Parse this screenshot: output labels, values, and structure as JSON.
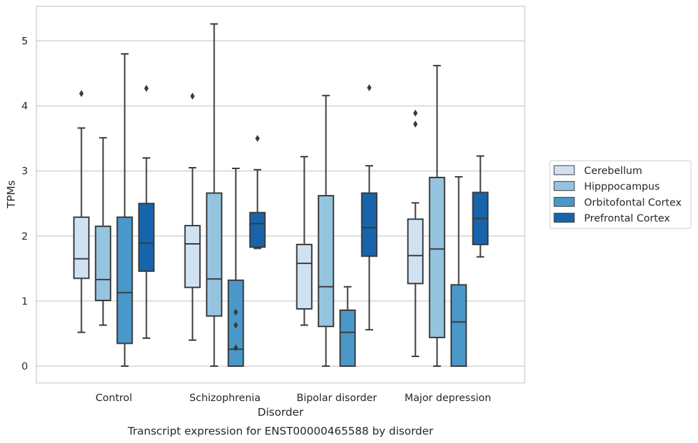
{
  "chart_data": {
    "type": "box",
    "title": "",
    "caption": "Transcript expression for ENST00000465588 by disorder",
    "xlabel": "Disorder",
    "ylabel": "TPMs",
    "ylim": [
      -0.25,
      5.5
    ],
    "yticks": [
      0,
      1,
      2,
      3,
      4,
      5
    ],
    "grid": "horizontal",
    "legend_position": "right",
    "categories": [
      "Control",
      "Schizophrenia",
      "Bipolar disorder",
      "Major depression"
    ],
    "series": [
      {
        "name": "Cerebellum",
        "color": "#d0e1f2",
        "boxes": [
          {
            "whisker_low": 0.52,
            "q1": 1.35,
            "median": 1.65,
            "q3": 2.29,
            "whisker_high": 3.66,
            "outliers": [
              4.19
            ]
          },
          {
            "whisker_low": 0.4,
            "q1": 1.21,
            "median": 1.88,
            "q3": 2.16,
            "whisker_high": 3.05,
            "outliers": [
              4.15
            ]
          },
          {
            "whisker_low": 0.63,
            "q1": 0.88,
            "median": 1.58,
            "q3": 1.87,
            "whisker_high": 3.22,
            "outliers": []
          },
          {
            "whisker_low": 0.15,
            "q1": 1.27,
            "median": 1.7,
            "q3": 2.26,
            "whisker_high": 2.51,
            "outliers": [
              3.72,
              3.89
            ]
          }
        ]
      },
      {
        "name": "Hipppocampus",
        "color": "#94c4df",
        "boxes": [
          {
            "whisker_low": 0.63,
            "q1": 1.01,
            "median": 1.33,
            "q3": 2.15,
            "whisker_high": 3.51,
            "outliers": []
          },
          {
            "whisker_low": 0.0,
            "q1": 0.77,
            "median": 1.34,
            "q3": 2.66,
            "whisker_high": 5.26,
            "outliers": []
          },
          {
            "whisker_low": 0.0,
            "q1": 0.61,
            "median": 1.22,
            "q3": 2.62,
            "whisker_high": 4.16,
            "outliers": []
          },
          {
            "whisker_low": 0.0,
            "q1": 0.44,
            "median": 1.8,
            "q3": 2.9,
            "whisker_high": 4.62,
            "outliers": []
          }
        ]
      },
      {
        "name": "Orbitofontal Cortex",
        "color": "#4a98c9",
        "boxes": [
          {
            "whisker_low": 0.0,
            "q1": 0.35,
            "median": 1.13,
            "q3": 2.29,
            "whisker_high": 4.8,
            "outliers": []
          },
          {
            "whisker_low": 0.0,
            "q1": 0.0,
            "median": 0.26,
            "q3": 1.32,
            "whisker_high": 3.04,
            "outliers": [
              0.28,
              0.63,
              0.83
            ]
          },
          {
            "whisker_low": 0.0,
            "q1": 0.0,
            "median": 0.52,
            "q3": 0.86,
            "whisker_high": 1.22,
            "outliers": []
          },
          {
            "whisker_low": 0.0,
            "q1": 0.0,
            "median": 0.68,
            "q3": 1.25,
            "whisker_high": 2.91,
            "outliers": []
          }
        ]
      },
      {
        "name": "Prefrontal Cortex",
        "color": "#1764ab",
        "boxes": [
          {
            "whisker_low": 0.43,
            "q1": 1.46,
            "median": 1.89,
            "q3": 2.5,
            "whisker_high": 3.2,
            "outliers": [
              4.27
            ]
          },
          {
            "whisker_low": 1.81,
            "q1": 1.83,
            "median": 2.19,
            "q3": 2.36,
            "whisker_high": 3.02,
            "outliers": [
              3.5
            ]
          },
          {
            "whisker_low": 0.56,
            "q1": 1.69,
            "median": 2.13,
            "q3": 2.66,
            "whisker_high": 3.08,
            "outliers": [
              4.28
            ]
          },
          {
            "whisker_low": 1.68,
            "q1": 1.87,
            "median": 2.27,
            "q3": 2.67,
            "whisker_high": 3.23,
            "outliers": []
          }
        ]
      }
    ]
  }
}
